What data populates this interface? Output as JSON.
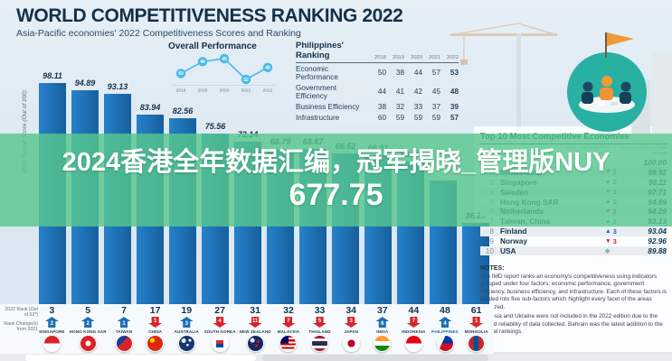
{
  "header": {
    "title": "WORLD COMPETITIVENESS RANKING 2022",
    "subtitle": "Asia-Pacific economies' 2022 Competitiveness Scores and Ranking"
  },
  "overlay": {
    "line1": "2024香港全年数据汇编，冠军揭晓_管理版NUY",
    "line2": "677.75"
  },
  "axis": {
    "score_label": "2022 Overall Score (Out of 100)",
    "rank_label": "2022 Rank (Out of 63*)",
    "change_label": "Rank Change(s) from 2021"
  },
  "colors": {
    "bar": "#1c6eb5",
    "up": "#1c6eb5",
    "down": "#d8232a",
    "neutral": "#9aa6af",
    "overlay_green": "#57c78d",
    "line_point": "#49b9e8",
    "title_navy": "#14304a"
  },
  "chart_data": [
    {
      "type": "bar",
      "title": "Asia-Pacific economies' 2022 Competitiveness Scores and Ranking",
      "ylabel": "2022 Overall Score (Out of 100)",
      "ylim": [
        0,
        100
      ],
      "economies": [
        {
          "name": "SINGAPORE",
          "flag": "sg",
          "score": 98.11,
          "score_label": "98.11",
          "rank": 3,
          "dir": "up",
          "change": 2,
          "highlight": false
        },
        {
          "name": "HONG KONG SAR",
          "flag": "hk",
          "score": 94.89,
          "score_label": "94.89",
          "rank": 5,
          "dir": "up",
          "change": 2,
          "highlight": false
        },
        {
          "name": "TAIWAN",
          "flag": "tw",
          "score": 93.13,
          "score_label": "93.13",
          "rank": 7,
          "dir": "up",
          "change": 1,
          "highlight": false
        },
        {
          "name": "CHINA",
          "flag": "cn",
          "score": 83.94,
          "score_label": "83.94",
          "rank": 17,
          "dir": "down",
          "change": 1,
          "highlight": false
        },
        {
          "name": "AUSTRALIA",
          "flag": "au",
          "score": 82.56,
          "score_label": "82.56",
          "rank": 19,
          "dir": "up",
          "change": 3,
          "highlight": false
        },
        {
          "name": "SOUTH KOREA",
          "flag": "kr",
          "score": 75.56,
          "score_label": "75.56",
          "rank": 27,
          "dir": "down",
          "change": 4,
          "highlight": false
        },
        {
          "name": "NEW ZEALAND",
          "flag": "nz",
          "score": 72.14,
          "score_label": "72.14",
          "rank": 31,
          "dir": "down",
          "change": 11,
          "highlight": false
        },
        {
          "name": "MALAYSIA",
          "flag": "my",
          "score": 68.79,
          "score_label": "68.79",
          "rank": 32,
          "dir": "down",
          "change": 7,
          "highlight": false
        },
        {
          "name": "THAILAND",
          "flag": "th",
          "score": 68.67,
          "score_label": "68.67",
          "rank": 33,
          "dir": "down",
          "change": 5,
          "highlight": false
        },
        {
          "name": "JAPAN",
          "flag": "jp",
          "score": 66.62,
          "score_label": "66.62",
          "rank": 34,
          "dir": "down",
          "change": 3,
          "highlight": false
        },
        {
          "name": "INDIA",
          "flag": "in",
          "score": 66.01,
          "score_label": "66.01",
          "rank": 37,
          "dir": "up",
          "change": 6,
          "highlight": false
        },
        {
          "name": "INDONESIA",
          "flag": "id",
          "score": 63.29,
          "score_label": "63.29",
          "rank": 44,
          "dir": "down",
          "change": 7,
          "highlight": false
        },
        {
          "name": "PHILIPPINES",
          "flag": "ph",
          "score": 55.0,
          "score_label": "",
          "rank": 48,
          "dir": "up",
          "change": 4,
          "highlight": true
        },
        {
          "name": "MONGOLIA",
          "flag": "mn",
          "score": 36.2,
          "score_label": "36.20",
          "rank": 61,
          "dir": "down",
          "change": 1,
          "highlight": false
        }
      ]
    },
    {
      "type": "line",
      "title": "Overall Performance",
      "x": [
        "2018",
        "2019",
        "2020",
        "2021",
        "2022"
      ],
      "values": [
        50,
        46,
        45,
        52,
        48
      ],
      "ylim": [
        45,
        52
      ],
      "axis_note": "Philippines' overall rank; lower is better (axis inverted)"
    },
    {
      "type": "table",
      "title": "Philippines' Ranking",
      "columns": [
        "2018",
        "2019",
        "2020",
        "2021",
        "2022"
      ],
      "rows": [
        {
          "label": "Economic Performance",
          "values": [
            50,
            38,
            44,
            57,
            53
          ]
        },
        {
          "label": "Government Efficiency",
          "values": [
            44,
            41,
            42,
            45,
            48
          ]
        },
        {
          "label": "Business Efficiency",
          "values": [
            38,
            32,
            33,
            37,
            39
          ]
        },
        {
          "label": "Infrastructure",
          "values": [
            60,
            59,
            59,
            59,
            57
          ]
        }
      ]
    },
    {
      "type": "table",
      "title": "Top 10 Most Competitive Economies",
      "columns": [
        "Rank Change(s) from 2021",
        "2022 Overall Score (Out of 100)"
      ],
      "rows": [
        {
          "rank": 1,
          "country": "",
          "dir": "",
          "change": "",
          "score": "100.00"
        },
        {
          "rank": 2,
          "country": "Switzerland",
          "dir": "down",
          "change": "1",
          "score": "98.92"
        },
        {
          "rank": 3,
          "country": "Singapore",
          "dir": "up",
          "change": "2",
          "score": "98.11"
        },
        {
          "rank": 4,
          "country": "Sweden",
          "dir": "down",
          "change": "2",
          "score": "97.71"
        },
        {
          "rank": 5,
          "country": "Hong Kong SAR",
          "dir": "up",
          "change": "2",
          "score": "94.89"
        },
        {
          "rank": 6,
          "country": "Netherlands",
          "dir": "down",
          "change": "2",
          "score": "94.29"
        },
        {
          "rank": 7,
          "country": "Taiwan, China",
          "dir": "up",
          "change": "1",
          "score": "93.13"
        },
        {
          "rank": 8,
          "country": "Finland",
          "dir": "up",
          "change": "3",
          "score": "93.04"
        },
        {
          "rank": 9,
          "country": "Norway",
          "dir": "down",
          "change": "3",
          "score": "92.96"
        },
        {
          "rank": 10,
          "country": "USA",
          "dir": "none",
          "change": "",
          "score": "89.88"
        }
      ]
    }
  ],
  "notes": {
    "heading": "NOTES:",
    "p1": "The IMD report ranks an economy's competitiveness using indicators grouped under four factors: economic performance, government efficiency, business efficiency, and infrastructure. Each of these factors is divided into five sub-factors which highlight every facet of the areas analyzed.",
    "p2": "* Russia and Ukraine were not included in the 2022 edition due to the limited reliability of data collected. Bahrain was the latest addition to the annual rankings."
  }
}
